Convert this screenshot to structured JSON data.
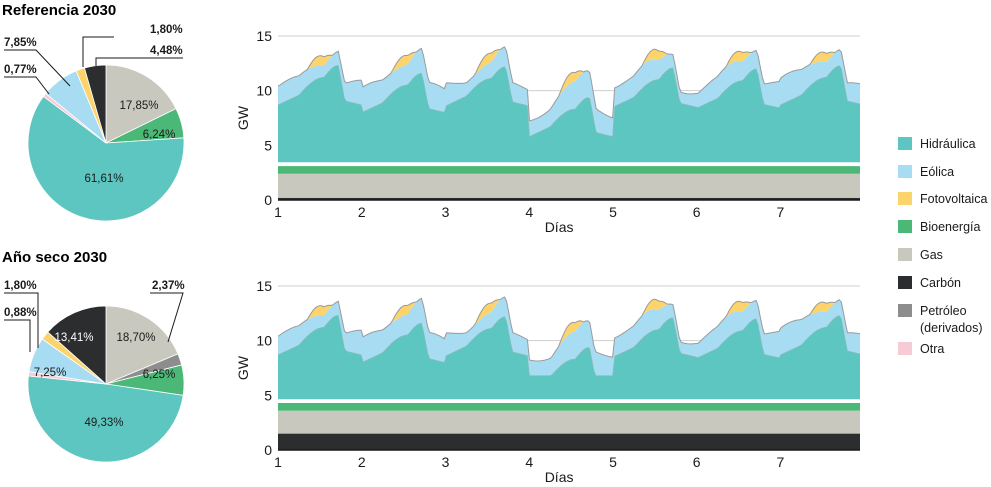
{
  "chart_data": [
    {
      "type": "pie",
      "title": "Referencia 2030",
      "slices": [
        {
          "label": "Hidráulica",
          "value": 61.61,
          "text": "61,61%"
        },
        {
          "label": "Eólica",
          "value": 7.85,
          "text": "7,85%"
        },
        {
          "label": "Fotovoltaica",
          "value": 1.8,
          "text": "1,80%"
        },
        {
          "label": "Bioenergía",
          "value": 6.24,
          "text": "6,24%"
        },
        {
          "label": "Gas",
          "value": 17.85,
          "text": "17,85%"
        },
        {
          "label": "Carbón",
          "value": 4.48,
          "text": "4,48%"
        },
        {
          "label": "Otra",
          "value": 0.77,
          "text": "0,77%"
        }
      ]
    },
    {
      "type": "area",
      "stacked": true,
      "xlabel": "Días",
      "ylabel": "GW",
      "xticks": [
        "1",
        "2",
        "3",
        "4",
        "5",
        "6",
        "7"
      ],
      "yticks": [
        "0",
        "5",
        "10",
        "15"
      ],
      "ylim": [
        0,
        15
      ],
      "xlim": [
        1,
        7.95
      ],
      "grid": true,
      "series": [
        {
          "name": "Carbón",
          "baseline": 0.2
        },
        {
          "name": "Gas",
          "baseline": 2.2
        },
        {
          "name": "Bioenergía",
          "baseline": 0.7
        },
        {
          "name": "Hidráulica",
          "daily_peak_approx": [
            12.0,
            11.5,
            12.0,
            9.5,
            12.0,
            11.8,
            12.0
          ]
        },
        {
          "name": "Eólica",
          "typical_range": [
            1.0,
            2.5
          ]
        },
        {
          "name": "Fotovoltaica",
          "midday_peak": 1.0
        },
        {
          "name": "Petróleo (derivados)",
          "baseline": 0.1
        }
      ]
    },
    {
      "type": "pie",
      "title": "Año seco 2030",
      "slices": [
        {
          "label": "Hidráulica",
          "value": 49.33,
          "text": "49,33%"
        },
        {
          "label": "Eólica",
          "value": 7.25,
          "text": "7,25%"
        },
        {
          "label": "Fotovoltaica",
          "value": 1.8,
          "text": "1,80%"
        },
        {
          "label": "Carbón",
          "value": 13.41,
          "text": "13,41%"
        },
        {
          "label": "Gas",
          "value": 18.7,
          "text": "18,70%"
        },
        {
          "label": "Petróleo (derivados)",
          "value": 2.37,
          "text": "2,37%"
        },
        {
          "label": "Bioenergía",
          "value": 6.25,
          "text": "6,25%"
        },
        {
          "label": "Otra",
          "value": 0.88,
          "text": "0,88%"
        }
      ]
    },
    {
      "type": "area",
      "stacked": true,
      "xlabel": "Días",
      "ylabel": "GW",
      "xticks": [
        "1",
        "2",
        "3",
        "4",
        "5",
        "6",
        "7"
      ],
      "yticks": [
        "0",
        "5",
        "10",
        "15"
      ],
      "ylim": [
        0,
        15
      ],
      "xlim": [
        1,
        7.95
      ],
      "grid": true,
      "series": [
        {
          "name": "Carbón",
          "baseline": 1.5
        },
        {
          "name": "Gas",
          "baseline": 2.1
        },
        {
          "name": "Bioenergía",
          "baseline": 0.7
        },
        {
          "name": "Hidráulica",
          "daily_peak_approx": [
            12.0,
            11.5,
            12.0,
            9.5,
            12.0,
            11.8,
            12.0
          ]
        },
        {
          "name": "Eólica",
          "typical_range": [
            1.0,
            2.5
          ]
        },
        {
          "name": "Fotovoltaica",
          "midday_peak": 1.0
        },
        {
          "name": "Petróleo (derivados)",
          "baseline": 0.1
        }
      ]
    }
  ],
  "legend": {
    "placement": "right",
    "items": [
      {
        "label": "Hidráulica",
        "color": "#5ec6c0"
      },
      {
        "label": "Eólica",
        "color": "#a8dcf3"
      },
      {
        "label": "Fotovoltaica",
        "color": "#fdd36b"
      },
      {
        "label": "Bioenergía",
        "color": "#4cb877"
      },
      {
        "label": "Gas",
        "color": "#c9c8bf"
      },
      {
        "label": "Carbón",
        "color": "#2b2d2e"
      },
      {
        "label": "Petróleo",
        "label2": "(derivados)",
        "color": "#8d8d8d"
      },
      {
        "label": "Otra",
        "color": "#f6cbd6"
      }
    ]
  },
  "colors": {
    "Hidráulica": "#5ec6c0",
    "Eólica": "#a8dcf3",
    "Fotovoltaica": "#fdd36b",
    "Bioenergía": "#4cb877",
    "Gas": "#c9c8bf",
    "Carbón": "#2b2d2e",
    "Petróleo": "#8d8d8d",
    "Otra": "#f6cbd6",
    "gridline": "#cfcfcf",
    "outline": "#9a9a9a"
  }
}
